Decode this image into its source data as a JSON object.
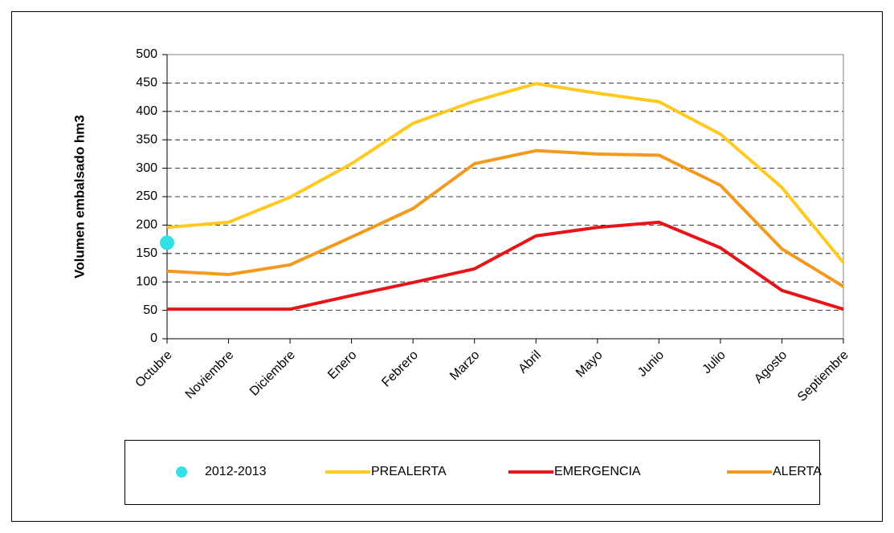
{
  "chart_data": {
    "type": "line",
    "y_label": "Volumen embalsado hm3",
    "categories": [
      "Octubre",
      "Noviembre",
      "Diciembre",
      "Enero",
      "Febrero",
      "Marzo",
      "Abril",
      "Mayo",
      "Junio",
      "Julio",
      "Agosto",
      "Septiembre"
    ],
    "series": [
      {
        "name": "2012-2013",
        "color": "#33e0e8",
        "style": "marker",
        "values": [
          169,
          null,
          null,
          null,
          null,
          null,
          null,
          null,
          null,
          null,
          null,
          null
        ]
      },
      {
        "name": "PREALERTA",
        "color": "#ffc91f",
        "style": "line",
        "values": [
          196,
          205,
          249,
          308,
          379,
          418,
          449,
          432,
          417,
          360,
          266,
          134
        ]
      },
      {
        "name": "EMERGENCIA",
        "color": "#e8141a",
        "style": "line",
        "values": [
          52,
          52,
          52,
          76,
          99,
          123,
          181,
          196,
          205,
          160,
          85,
          52
        ]
      },
      {
        "name": "ALERTA",
        "color": "#f39a1e",
        "style": "line",
        "values": [
          119,
          113,
          130,
          179,
          229,
          308,
          331,
          325,
          323,
          270,
          158,
          92
        ]
      }
    ],
    "ylim": [
      0,
      500
    ],
    "yticks": [
      0,
      50,
      100,
      150,
      200,
      250,
      300,
      350,
      400,
      450,
      500
    ],
    "grid": true
  }
}
